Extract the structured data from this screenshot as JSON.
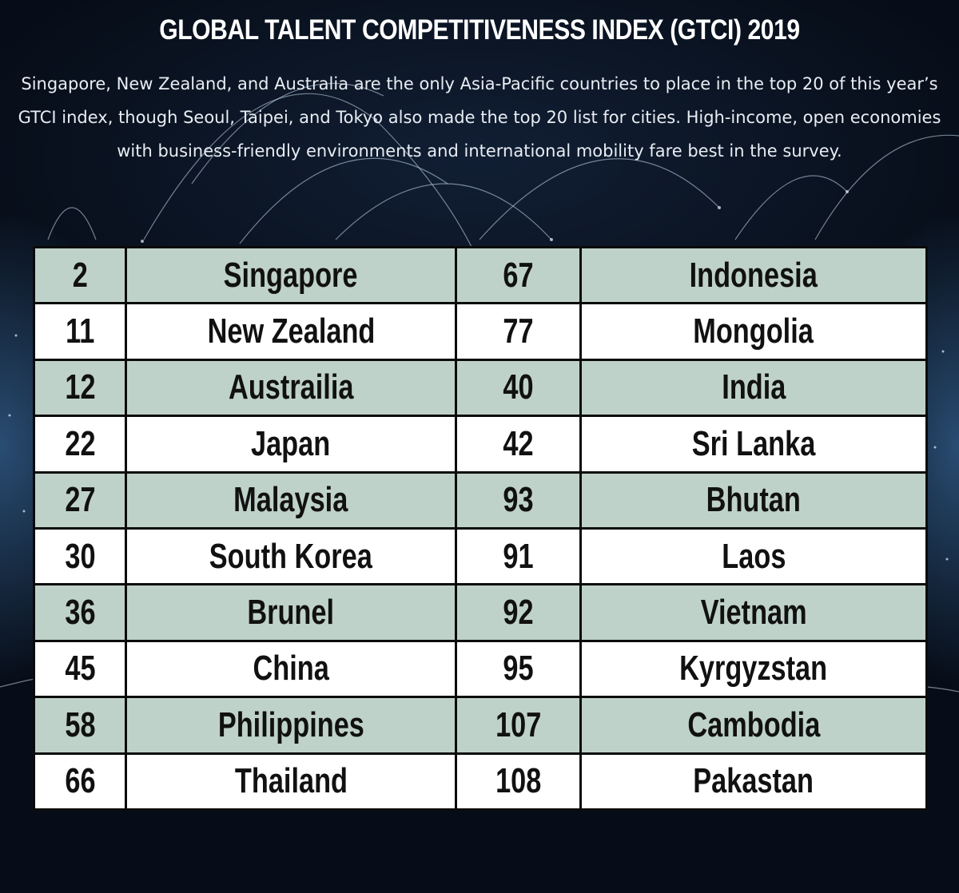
{
  "header": {
    "title": "GLOBAL TALENT COMPETITIVENESS INDEX (GTCI) 2019",
    "subtitle": "Singapore, New Zealand, and Australia are the only Asia-Pacific countries to place in the top 20 of this year’s GTCI index, though Seoul, Taipei, and Tokyo also made the top 20 list for cities. High-income, open economies with business-friendly environments and international mobility fare best in the survey."
  },
  "table": {
    "rows": [
      {
        "rank1": "2",
        "country1": "Singapore",
        "rank2": "67",
        "country2": "Indonesia"
      },
      {
        "rank1": "11",
        "country1": "New Zealand",
        "rank2": "77",
        "country2": "Mongolia"
      },
      {
        "rank1": "12",
        "country1": "Austrailia",
        "rank2": "40",
        "country2": "India"
      },
      {
        "rank1": "22",
        "country1": "Japan",
        "rank2": "42",
        "country2": "Sri Lanka"
      },
      {
        "rank1": "27",
        "country1": "Malaysia",
        "rank2": "93",
        "country2": "Bhutan"
      },
      {
        "rank1": "30",
        "country1": "South Korea",
        "rank2": "91",
        "country2": "Laos"
      },
      {
        "rank1": "36",
        "country1": "Brunel",
        "rank2": "92",
        "country2": "Vietnam"
      },
      {
        "rank1": "45",
        "country1": "China",
        "rank2": "95",
        "country2": "Kyrgyzstan"
      },
      {
        "rank1": "58",
        "country1": "Philippines",
        "rank2": "107",
        "country2": "Cambodia"
      },
      {
        "rank1": "66",
        "country1": "Thailand",
        "rank2": "108",
        "country2": "Pakastan"
      }
    ]
  },
  "colors": {
    "background": "#070d18",
    "row_shaded": "#bfd2c9",
    "row_plain": "#ffffff",
    "grid": "#0b0b0b"
  }
}
